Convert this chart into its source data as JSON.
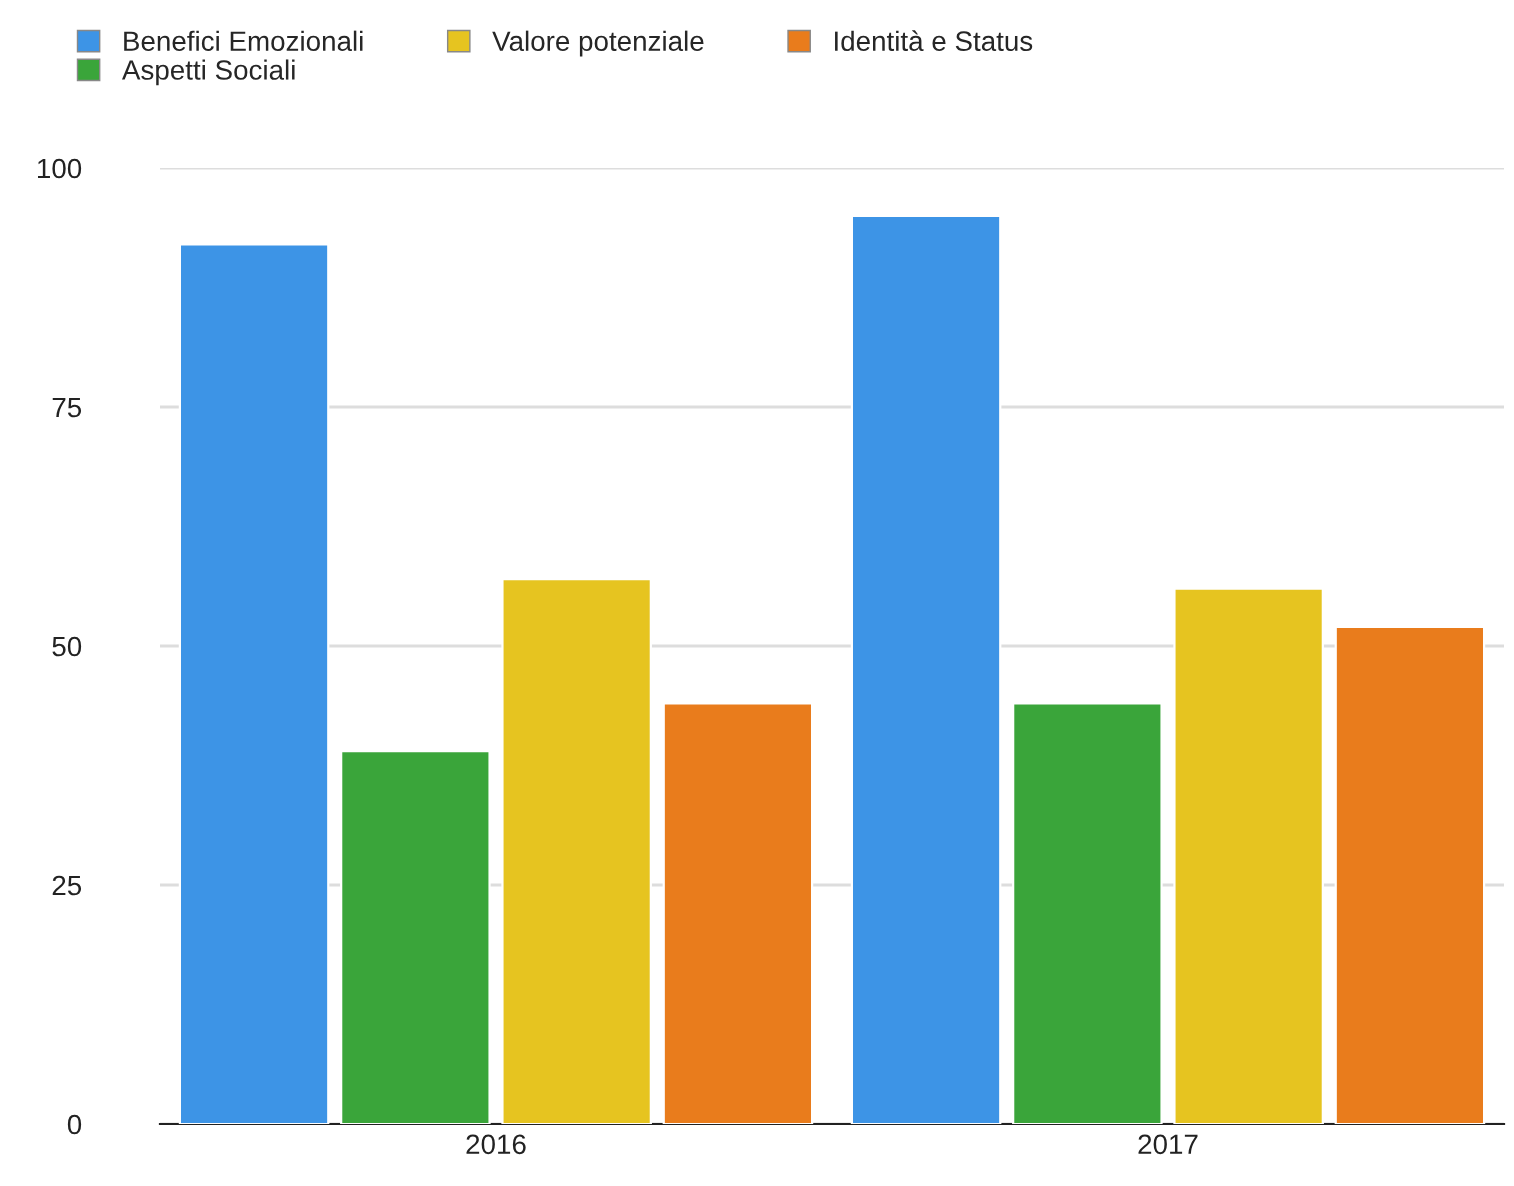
{
  "chart_data": {
    "type": "bar",
    "categories": [
      "2016",
      "2017"
    ],
    "series": [
      {
        "name": "Benefici Emozionali",
        "color": "#3d94e6",
        "values": [
          92,
          95
        ]
      },
      {
        "name": "Aspetti Sociali",
        "color": "#3aa53a",
        "values": [
          39,
          44
        ]
      },
      {
        "name": "Valore potenziale",
        "color": "#e6c420",
        "values": [
          57,
          56
        ]
      },
      {
        "name": "Identità e Status",
        "color": "#e97c1c",
        "values": [
          44,
          52
        ]
      }
    ],
    "ylim": [
      0,
      100
    ],
    "yticks": [
      0,
      25,
      50,
      75,
      100
    ],
    "grid": "y",
    "legend": "top left"
  }
}
